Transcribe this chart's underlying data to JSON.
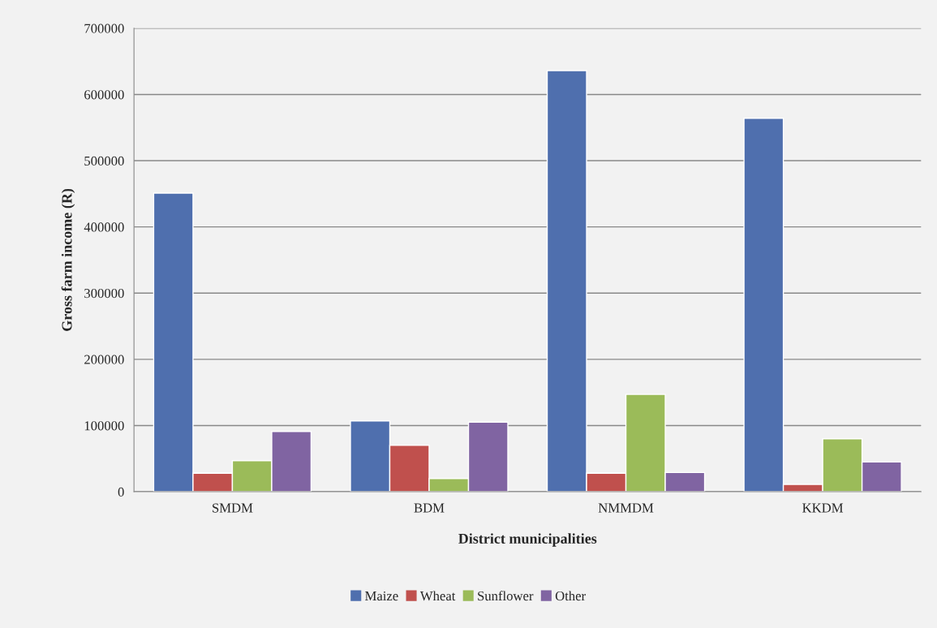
{
  "chart_data": {
    "type": "bar",
    "xlabel": "District municipalities",
    "ylabel": "Gross farm income (R)",
    "categories": [
      "SMDM",
      "BDM",
      "NMMDM",
      "KKDM"
    ],
    "series": [
      {
        "name": "Maize",
        "color": "#4f6fae",
        "values": [
          451000,
          107000,
          636000,
          564000
        ]
      },
      {
        "name": "Wheat",
        "color": "#c0504d",
        "values": [
          28000,
          70000,
          28000,
          11000
        ]
      },
      {
        "name": "Sunflower",
        "color": "#9bbb59",
        "values": [
          47000,
          20000,
          147000,
          80000
        ]
      },
      {
        "name": "Other",
        "color": "#8064a2",
        "values": [
          91000,
          105000,
          29000,
          45000
        ]
      }
    ],
    "ylim": [
      0,
      700000
    ],
    "yticks": [
      0,
      100000,
      200000,
      300000,
      400000,
      500000,
      600000,
      700000
    ],
    "grid": "y",
    "legend": "bottom"
  }
}
